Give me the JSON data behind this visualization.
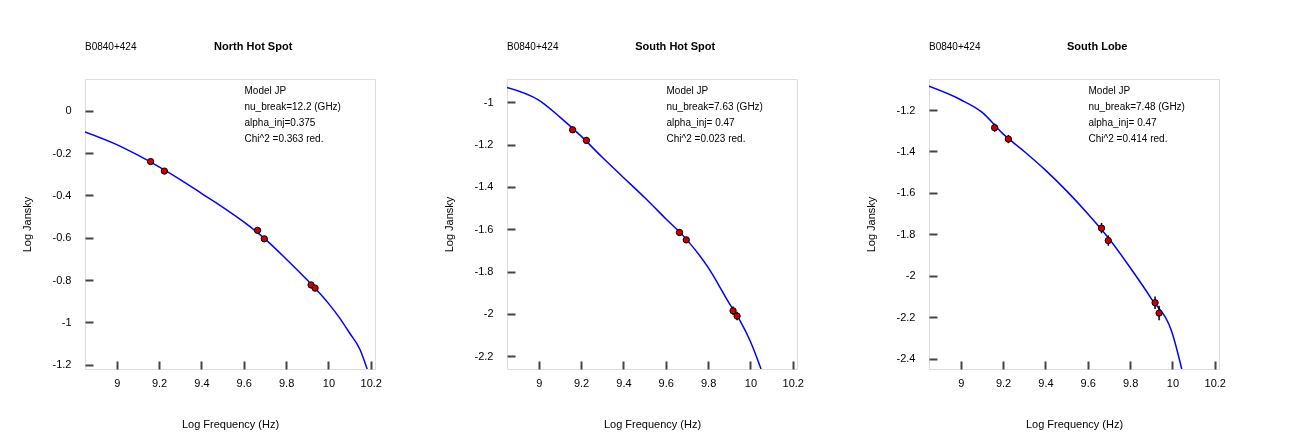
{
  "chart_data": [
    {
      "type": "scatter",
      "title": "North Hot Spot",
      "xlabel": "Log Frequency (Hz)",
      "ylabel": "Log Jansky",
      "annotations": [
        "B0840+424",
        "Model JP",
        "nu_break=12.2 (GHz)",
        "alpha_inj=0.375",
        "Chi^2 =0.363 red."
      ],
      "xlim": [
        8.85,
        10.22
      ],
      "ylim": [
        -1.22,
        0.15
      ],
      "xticks": [
        9,
        9.2,
        9.4,
        9.6,
        9.8,
        10,
        10.2
      ],
      "yticks": [
        0,
        -0.2,
        -0.4,
        -0.6,
        -0.8,
        -1,
        -1.2
      ],
      "grid": false,
      "line_style": "solid",
      "series": [
        {
          "type": "line",
          "color": "#0000ff",
          "x": [
            8.85,
            9.0,
            9.1,
            9.2,
            9.3,
            9.4,
            9.5,
            9.6,
            9.7,
            9.8,
            9.9,
            10.0,
            10.05,
            10.1,
            10.15,
            10.183
          ],
          "values": [
            -0.1,
            -0.16,
            -0.21,
            -0.265,
            -0.325,
            -0.39,
            -0.455,
            -0.525,
            -0.605,
            -0.7,
            -0.8,
            -0.91,
            -0.975,
            -1.05,
            -1.13,
            -1.22
          ]
        },
        {
          "marker": "circle",
          "color": "#cc0000",
          "x": [
            9.16,
            9.225,
            9.665,
            9.697,
            9.918,
            9.937
          ],
          "values": [
            -0.24,
            -0.285,
            -0.565,
            -0.605,
            -0.823,
            -0.838
          ],
          "errors": [
            0.01,
            0.01,
            0.01,
            0.01,
            0.01,
            0.01
          ]
        }
      ]
    },
    {
      "type": "scatter",
      "title": "South Hot Spot",
      "xlabel": "Log Frequency (Hz)",
      "ylabel": "Log Jansky",
      "annotations": [
        "B0840+424",
        "Model JP",
        "nu_break=7.63  (GHz)",
        "alpha_inj= 0.47",
        "Chi^2 =0.023 red."
      ],
      "xlim": [
        8.85,
        10.22
      ],
      "ylim": [
        -2.26,
        -0.89
      ],
      "xticks": [
        9,
        9.2,
        9.4,
        9.6,
        9.8,
        10,
        10.2
      ],
      "yticks": [
        -1,
        -1.2,
        -1.4,
        -1.6,
        -1.8,
        -2,
        -2.2
      ],
      "grid": false,
      "line_style": "solid",
      "series": [
        {
          "type": "line",
          "color": "#0000ff",
          "x": [
            8.85,
            9.0,
            9.1,
            9.2,
            9.3,
            9.4,
            9.5,
            9.6,
            9.7,
            9.8,
            9.9,
            9.95,
            10.0,
            10.05
          ],
          "values": [
            -0.93,
            -0.99,
            -1.07,
            -1.16,
            -1.26,
            -1.355,
            -1.45,
            -1.55,
            -1.65,
            -1.78,
            -1.95,
            -2.03,
            -2.13,
            -2.26
          ]
        },
        {
          "marker": "circle",
          "color": "#cc0000",
          "x": [
            9.16,
            9.225,
            9.665,
            9.697,
            9.918,
            9.937
          ],
          "values": [
            -1.13,
            -1.18,
            -1.615,
            -1.65,
            -1.985,
            -2.01
          ],
          "errors": [
            0.015,
            0.015,
            0.015,
            0.015,
            0.02,
            0.02
          ]
        }
      ]
    },
    {
      "type": "scatter",
      "title": "South Lobe",
      "xlabel": "Log Frequency (Hz)",
      "ylabel": "Log Jansky",
      "annotations": [
        "B0840+424",
        "Model JP",
        "nu_break=7.48  (GHz)",
        "alpha_inj= 0.47",
        "Chi^2 =0.414 red."
      ],
      "xlim": [
        8.85,
        10.22
      ],
      "ylim": [
        -2.45,
        -1.05
      ],
      "xticks": [
        9,
        9.2,
        9.4,
        9.6,
        9.8,
        10,
        10.2
      ],
      "yticks": [
        -1.2,
        -1.4,
        -1.6,
        -1.8,
        -2,
        -2.2,
        -2.4
      ],
      "grid": false,
      "line_style": "solid",
      "series": [
        {
          "type": "line",
          "color": "#0000ff",
          "x": [
            8.85,
            9.0,
            9.1,
            9.2,
            9.3,
            9.4,
            9.5,
            9.6,
            9.7,
            9.8,
            9.9,
            10.0,
            10.044
          ],
          "values": [
            -1.085,
            -1.15,
            -1.21,
            -1.315,
            -1.4,
            -1.49,
            -1.59,
            -1.7,
            -1.82,
            -1.96,
            -2.11,
            -2.28,
            -2.45
          ]
        },
        {
          "marker": "circle",
          "color": "#cc0000",
          "x": [
            9.16,
            9.225,
            9.665,
            9.697,
            9.918,
            9.937
          ],
          "values": [
            -1.285,
            -1.34,
            -1.77,
            -1.83,
            -2.13,
            -2.18
          ],
          "errors": [
            0.02,
            0.02,
            0.025,
            0.025,
            0.03,
            0.035
          ]
        }
      ]
    }
  ]
}
